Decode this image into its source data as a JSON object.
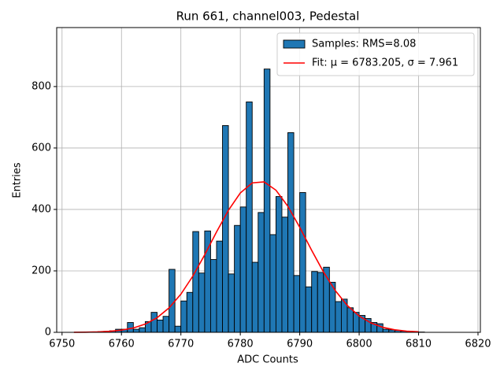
{
  "chart_data": {
    "type": "histogram",
    "title": "Run 661, channel003, Pedestal",
    "x_label": "ADC Counts",
    "y_label": "Entries",
    "xlim": [
      6749.1,
      6820.4
    ],
    "ylim": [
      0,
      992
    ],
    "xticks": [
      6750,
      6760,
      6770,
      6780,
      6790,
      6800,
      6810,
      6820
    ],
    "yticks": [
      0,
      200,
      400,
      600,
      800
    ],
    "grid": true,
    "legend": "upper right",
    "series": [
      {
        "name": "Samples: RMS=8.08",
        "type": "histogram",
        "color": "#1f77b4",
        "bins": [
          6755,
          6756,
          6757,
          6758,
          6759,
          6760,
          6761,
          6762,
          6763,
          6764,
          6765,
          6766,
          6767,
          6768,
          6769,
          6770,
          6771,
          6772,
          6773,
          6774,
          6775,
          6776,
          6777,
          6778,
          6779,
          6780,
          6781,
          6782,
          6783,
          6784,
          6785,
          6786,
          6787,
          6788,
          6789,
          6790,
          6791,
          6792,
          6793,
          6794,
          6795,
          6796,
          6797,
          6798,
          6799,
          6800,
          6801,
          6802,
          6803,
          6804,
          6805,
          6806,
          6807,
          6808,
          6809,
          6810,
          6811
        ],
        "values": [
          1,
          2,
          3,
          5,
          10,
          10,
          32,
          10,
          15,
          35,
          65,
          40,
          52,
          205,
          20,
          102,
          130,
          328,
          193,
          330,
          237,
          297,
          673,
          190,
          348,
          408,
          750,
          228,
          390,
          857,
          318,
          442,
          375,
          650,
          185,
          455,
          148,
          198,
          195,
          212,
          163,
          100,
          108,
          80,
          65,
          55,
          45,
          32,
          28,
          10,
          8,
          6,
          4,
          3,
          2,
          1
        ]
      },
      {
        "name": "Fit: μ = 6783.205, σ = 7.961",
        "type": "line",
        "color": "#ff0000",
        "x": [
          6752,
          6754,
          6756,
          6758,
          6760,
          6762,
          6764,
          6766,
          6768,
          6770,
          6772,
          6774,
          6776,
          6778,
          6780,
          6782,
          6784,
          6786,
          6788,
          6790,
          6792,
          6794,
          6796,
          6798,
          6800,
          6802,
          6804,
          6806,
          6808,
          6810
        ],
        "values": [
          0.2,
          0.6,
          1.4,
          3.3,
          7.0,
          14.2,
          26.8,
          47.6,
          79.4,
          124.3,
          182.6,
          252.2,
          326.7,
          397.2,
          453.7,
          486.4,
          489.6,
          462.6,
          410.4,
          341.8,
          267.3,
          196.3,
          135.4,
          87.5,
          53.1,
          30.3,
          16.2,
          8.2,
          3.8,
          1.7
        ]
      }
    ]
  }
}
